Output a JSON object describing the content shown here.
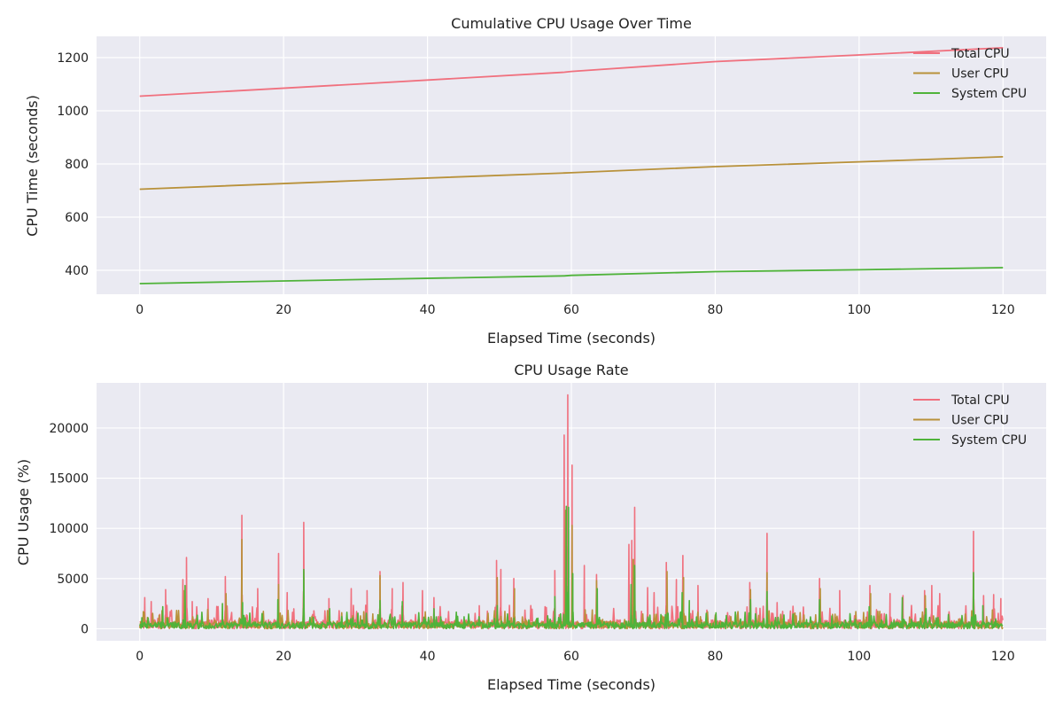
{
  "theme": {
    "plot_bg": "#eaeaf2",
    "grid": "#ffffff",
    "colors": {
      "total": "#f0707e",
      "user": "#b8913a",
      "system": "#4fb33a"
    }
  },
  "chart_data": [
    {
      "type": "line",
      "title": "Cumulative CPU Usage Over Time",
      "xlabel": "Elapsed Time (seconds)",
      "ylabel": "CPU Time (seconds)",
      "xlim": [
        -6,
        126
      ],
      "ylim": [
        310,
        1280
      ],
      "xticks": [
        0,
        20,
        40,
        60,
        80,
        100,
        120
      ],
      "yticks": [
        400,
        600,
        800,
        1000,
        1200
      ],
      "grid": true,
      "legend": "top-right",
      "series": [
        {
          "name": "Total CPU",
          "color": "#f0707e",
          "x": [
            0,
            30,
            59,
            60,
            80,
            100,
            120
          ],
          "values": [
            1055,
            1100,
            1145,
            1148,
            1185,
            1210,
            1237
          ]
        },
        {
          "name": "User CPU",
          "color": "#b8913a",
          "x": [
            0,
            30,
            59,
            60,
            80,
            100,
            120
          ],
          "values": [
            705,
            737,
            766,
            767,
            790,
            808,
            827
          ]
        },
        {
          "name": "System CPU",
          "color": "#4fb33a",
          "x": [
            0,
            30,
            59,
            60,
            80,
            100,
            120
          ],
          "values": [
            350,
            365,
            379,
            381,
            395,
            402,
            410
          ]
        }
      ]
    },
    {
      "type": "line",
      "title": "CPU Usage Rate",
      "xlabel": "Elapsed Time (seconds)",
      "ylabel": "CPU Usage (%)",
      "xlim": [
        -6,
        126
      ],
      "ylim": [
        -1200,
        24500
      ],
      "xticks": [
        0,
        20,
        40,
        60,
        80,
        100,
        120
      ],
      "yticks": [
        0,
        5000,
        10000,
        15000,
        20000
      ],
      "grid": true,
      "legend": "top-right",
      "series": [
        {
          "name": "Total CPU",
          "color": "#f0707e",
          "peaks": [
            [
              0.7,
              3100
            ],
            [
              1.6,
              2700
            ],
            [
              3.6,
              3900
            ],
            [
              6.0,
              4900
            ],
            [
              6.5,
              7100
            ],
            [
              7.3,
              2700
            ],
            [
              9.5,
              3000
            ],
            [
              11.9,
              5200
            ],
            [
              14.2,
              11300
            ],
            [
              16.4,
              4000
            ],
            [
              19.3,
              7500
            ],
            [
              20.5,
              3600
            ],
            [
              22.8,
              10600
            ],
            [
              26.3,
              3000
            ],
            [
              29.4,
              4000
            ],
            [
              31.6,
              3800
            ],
            [
              33.4,
              5700
            ],
            [
              35.1,
              4000
            ],
            [
              36.6,
              4600
            ],
            [
              39.3,
              3800
            ],
            [
              40.9,
              3100
            ],
            [
              47.2,
              2300
            ],
            [
              49.6,
              6800
            ],
            [
              50.2,
              5900
            ],
            [
              52.0,
              5000
            ],
            [
              57.7,
              5800
            ],
            [
              59.0,
              19300
            ],
            [
              59.5,
              23300
            ],
            [
              60.1,
              16300
            ],
            [
              61.8,
              6300
            ],
            [
              63.5,
              5400
            ],
            [
              68.0,
              8400
            ],
            [
              68.4,
              8800
            ],
            [
              68.8,
              12100
            ],
            [
              70.6,
              4100
            ],
            [
              71.5,
              3600
            ],
            [
              73.2,
              6600
            ],
            [
              74.6,
              4900
            ],
            [
              75.5,
              7300
            ],
            [
              77.6,
              4300
            ],
            [
              84.8,
              4600
            ],
            [
              87.2,
              9500
            ],
            [
              88.6,
              2600
            ],
            [
              94.5,
              5000
            ],
            [
              97.3,
              3800
            ],
            [
              101.5,
              4300
            ],
            [
              104.3,
              3500
            ],
            [
              106.1,
              3300
            ],
            [
              109.1,
              3800
            ],
            [
              110.1,
              4300
            ],
            [
              111.2,
              3500
            ],
            [
              115.9,
              9700
            ],
            [
              117.3,
              3300
            ],
            [
              118.7,
              3400
            ],
            [
              119.7,
              3000
            ]
          ]
        },
        {
          "name": "User CPU",
          "color": "#b8913a",
          "peaks": [
            [
              0.5,
              1700
            ],
            [
              3.1,
              1800
            ],
            [
              6.2,
              3800
            ],
            [
              12.0,
              3500
            ],
            [
              14.2,
              8900
            ],
            [
              19.3,
              4400
            ],
            [
              22.8,
              5700
            ],
            [
              33.4,
              5300
            ],
            [
              49.7,
              5100
            ],
            [
              52.1,
              4000
            ],
            [
              59.2,
              11800
            ],
            [
              60.1,
              10300
            ],
            [
              63.5,
              4800
            ],
            [
              68.6,
              6900
            ],
            [
              73.3,
              5700
            ],
            [
              75.6,
              5100
            ],
            [
              84.9,
              3900
            ],
            [
              87.2,
              5600
            ],
            [
              94.6,
              4000
            ],
            [
              101.6,
              3500
            ],
            [
              109.2,
              3300
            ],
            [
              115.9,
              5200
            ]
          ]
        },
        {
          "name": "System CPU",
          "color": "#4fb33a",
          "peaks": [
            [
              0.3,
              1100
            ],
            [
              3.2,
              2200
            ],
            [
              6.3,
              4300
            ],
            [
              11.5,
              2500
            ],
            [
              14.3,
              2600
            ],
            [
              19.2,
              2900
            ],
            [
              22.8,
              5900
            ],
            [
              26.4,
              2000
            ],
            [
              33.4,
              2800
            ],
            [
              36.5,
              2700
            ],
            [
              40.9,
              2000
            ],
            [
              49.7,
              2300
            ],
            [
              57.7,
              3200
            ],
            [
              59.3,
              12200
            ],
            [
              59.6,
              12100
            ],
            [
              60.2,
              5500
            ],
            [
              63.6,
              4000
            ],
            [
              68.3,
              4400
            ],
            [
              68.8,
              6300
            ],
            [
              75.4,
              3600
            ],
            [
              76.4,
              2800
            ],
            [
              84.9,
              2900
            ],
            [
              87.2,
              3700
            ],
            [
              94.5,
              2900
            ],
            [
              101.4,
              2200
            ],
            [
              106.0,
              3100
            ],
            [
              109.3,
              2000
            ],
            [
              115.9,
              5600
            ],
            [
              117.2,
              2300
            ]
          ]
        }
      ]
    }
  ]
}
